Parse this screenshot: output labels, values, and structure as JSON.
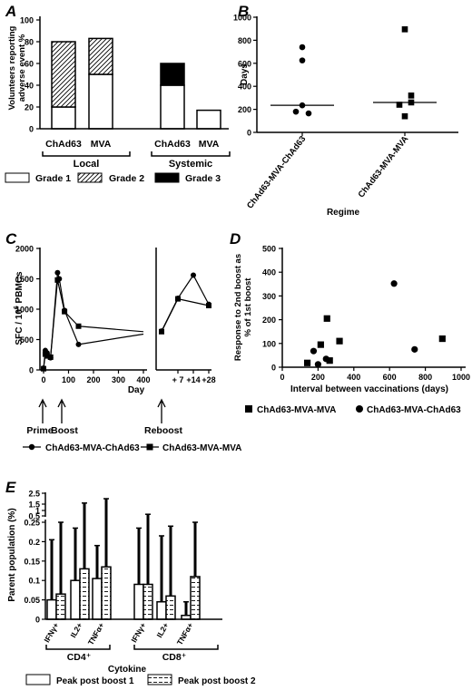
{
  "panels": {
    "A": {
      "letter": "A",
      "chart_data": {
        "type": "bar",
        "ylabel_line1": "Volunteers reporting",
        "ylabel_line2": "adverse event %",
        "ylim": [
          0,
          100
        ],
        "yticks": [
          0,
          20,
          40,
          60,
          80,
          100
        ],
        "categories": [
          "ChAd63",
          "MVA",
          "ChAd63",
          "MVA"
        ],
        "groups": [
          "Local",
          "Systemic"
        ],
        "series": [
          {
            "name": "Grade 1",
            "values": [
              20,
              50,
              40,
              17
            ]
          },
          {
            "name": "Grade 2",
            "values": [
              60,
              33,
              0,
              0
            ]
          },
          {
            "name": "Grade 3",
            "values": [
              0,
              0,
              20,
              0
            ]
          }
        ],
        "legend_position": "bottom"
      }
    },
    "B": {
      "letter": "B",
      "chart_data": {
        "type": "scatter",
        "ylabel": "Days",
        "xlabel": "Regime",
        "ylim": [
          0,
          1000
        ],
        "yticks": [
          0,
          200,
          400,
          600,
          800,
          1000
        ],
        "categories": [
          "ChAd63-MVA-ChAd63",
          "ChAd63-MVA-MVA"
        ],
        "series": [
          {
            "name": "ChAd63-MVA-ChAd63",
            "values": [
              740,
              625,
              235,
              180,
              165
            ],
            "median": 235
          },
          {
            "name": "ChAd63-MVA-MVA",
            "values": [
              895,
              320,
              260,
              240,
              140
            ],
            "median": 260
          }
        ]
      }
    },
    "C": {
      "letter": "C",
      "chart_data": {
        "type": "line",
        "ylabel": "SFC / 10",
        "ylabel_sup": "6",
        "ylabel_tail": " PBMCs",
        "ylim": [
          0,
          2000
        ],
        "yticks": [
          0,
          500,
          1000,
          1500,
          2000
        ],
        "left_xlabel": "Day",
        "left_xticks": [
          "0",
          "100",
          "200",
          "300",
          "400"
        ],
        "right_xticks": [
          "+ 7",
          "+14",
          "+28"
        ],
        "arrows": [
          "Prime",
          "Boost",
          "Reboost"
        ],
        "series": [
          {
            "name": "ChAd63-MVA-ChAd63",
            "marker": "circle",
            "main": [
              [
                0,
                30
              ],
              [
                7,
                320
              ],
              [
                14,
                280
              ],
              [
                28,
                200
              ],
              [
                56,
                1600
              ],
              [
                63,
                1500
              ],
              [
                84,
                980
              ],
              [
                140,
                420
              ]
            ],
            "main_end": [
              [
                140,
                420
              ],
              [
                400,
                590
              ]
            ],
            "boost": [
              [
                0,
                640
              ],
              [
                7,
                1180
              ],
              [
                14,
                1560
              ],
              [
                28,
                1080
              ]
            ]
          },
          {
            "name": "ChAd63-MVA-MVA",
            "marker": "square",
            "main": [
              [
                0,
                20
              ],
              [
                7,
                260
              ],
              [
                14,
                230
              ],
              [
                28,
                210
              ],
              [
                56,
                1480
              ],
              [
                84,
                960
              ],
              [
                140,
                720
              ]
            ],
            "main_end": [
              [
                140,
                720
              ],
              [
                400,
                630
              ]
            ],
            "boost": [
              [
                0,
                630
              ],
              [
                7,
                1170
              ],
              [
                28,
                1060
              ]
            ]
          }
        ]
      }
    },
    "D": {
      "letter": "D",
      "chart_data": {
        "type": "scatter",
        "ylabel_line1": "Response to 2nd boost as",
        "ylabel_line2": "% of 1st boost",
        "xlabel": "Interval between vaccinations (days)",
        "xlim": [
          0,
          1000
        ],
        "ylim": [
          0,
          500
        ],
        "xticks": [
          0,
          200,
          400,
          600,
          800,
          1000
        ],
        "yticks": [
          0,
          100,
          200,
          300,
          400,
          500
        ],
        "series": [
          {
            "name": "ChAd63-MVA-MVA",
            "marker": "square",
            "points": [
              [
                140,
                18
              ],
              [
                215,
                95
              ],
              [
                250,
                205
              ],
              [
                265,
                28
              ],
              [
                320,
                110
              ],
              [
                895,
                120
              ]
            ]
          },
          {
            "name": "ChAd63-MVA-ChAd63",
            "marker": "circle",
            "points": [
              [
                175,
                68
              ],
              [
                200,
                12
              ],
              [
                245,
                35
              ],
              [
                625,
                352
              ],
              [
                740,
                75
              ]
            ]
          }
        ]
      }
    },
    "E": {
      "letter": "E",
      "chart_data": {
        "type": "bar",
        "ylabel": "Parent population (%)",
        "xlabel": "Cytokine",
        "ylim_lower": [
          0,
          0.25
        ],
        "yticks_lower": [
          0,
          0.05,
          0.1,
          0.15,
          0.2,
          0.25
        ],
        "yticks_upper": [
          0.5,
          1.0,
          1.5,
          2.5
        ],
        "categories": [
          "IFNγ+",
          "IL2+",
          "TNFα+",
          "IFNγ+",
          "IL2+",
          "TNFα+"
        ],
        "groups": [
          "CD4⁺",
          "CD8⁺"
        ],
        "series": [
          {
            "name": "Peak post boost 1",
            "values": [
              0.05,
              0.1,
              0.105,
              0.09,
              0.045,
              0.01
            ],
            "error_upper": [
              0.205,
              0.235,
              0.19,
              0.235,
              0.215,
              0.045
            ]
          },
          {
            "name": "Peak post boost 2",
            "values": [
              0.065,
              0.13,
              0.135,
              0.09,
              0.06,
              0.11
            ],
            "error_upper": [
              0.25,
              1.6,
              2.0,
              0.65,
              0.24,
              0.25
            ]
          }
        ],
        "legend_position": "bottom"
      }
    }
  }
}
